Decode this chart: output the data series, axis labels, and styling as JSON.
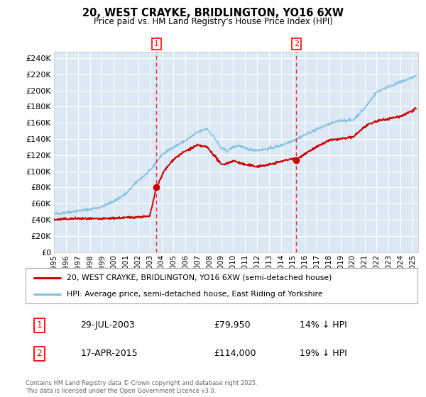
{
  "title1": "20, WEST CRAYKE, BRIDLINGTON, YO16 6XW",
  "title2": "Price paid vs. HM Land Registry's House Price Index (HPI)",
  "ylabel_ticks": [
    "£0",
    "£20K",
    "£40K",
    "£60K",
    "£80K",
    "£100K",
    "£120K",
    "£140K",
    "£160K",
    "£180K",
    "£200K",
    "£220K",
    "£240K"
  ],
  "ytick_vals": [
    0,
    20000,
    40000,
    60000,
    80000,
    100000,
    120000,
    140000,
    160000,
    180000,
    200000,
    220000,
    240000
  ],
  "ylim": [
    0,
    248000
  ],
  "xlim_start": 1995.0,
  "xlim_end": 2025.5,
  "hpi_color": "#7fbfdf",
  "price_color": "#cc0000",
  "marker1_date": 2003.57,
  "marker1_price": 79950,
  "marker2_date": 2015.29,
  "marker2_price": 114000,
  "legend_label1": "20, WEST CRAYKE, BRIDLINGTON, YO16 6XW (semi-detached house)",
  "legend_label2": "HPI: Average price, semi-detached house, East Riding of Yorkshire",
  "annot1_date": "29-JUL-2003",
  "annot1_price": "£79,950",
  "annot1_pct": "14% ↓ HPI",
  "annot2_date": "17-APR-2015",
  "annot2_price": "£114,000",
  "annot2_pct": "19% ↓ HPI",
  "copyright_text": "Contains HM Land Registry data © Crown copyright and database right 2025.\nThis data is licensed under the Open Government Licence v3.0.",
  "plot_bg_color": "#dce9f5",
  "grid_color": "#ffffff",
  "xtick_years": [
    1995,
    1996,
    1997,
    1998,
    1999,
    2000,
    2001,
    2002,
    2003,
    2004,
    2005,
    2006,
    2007,
    2008,
    2009,
    2010,
    2011,
    2012,
    2013,
    2014,
    2015,
    2016,
    2017,
    2018,
    2019,
    2020,
    2021,
    2022,
    2023,
    2024,
    2025
  ],
  "hpi_anchors": [
    [
      1995.0,
      47000
    ],
    [
      1996.0,
      49000
    ],
    [
      1997.0,
      51000
    ],
    [
      1998.0,
      53000
    ],
    [
      1999.0,
      56000
    ],
    [
      2000.0,
      63000
    ],
    [
      2001.0,
      72000
    ],
    [
      2002.0,
      88000
    ],
    [
      2003.0,
      100000
    ],
    [
      2004.0,
      120000
    ],
    [
      2005.0,
      130000
    ],
    [
      2006.0,
      138000
    ],
    [
      2007.0,
      148000
    ],
    [
      2007.8,
      153000
    ],
    [
      2008.5,
      140000
    ],
    [
      2009.0,
      128000
    ],
    [
      2009.5,
      125000
    ],
    [
      2010.0,
      130000
    ],
    [
      2010.5,
      132000
    ],
    [
      2011.0,
      128000
    ],
    [
      2012.0,
      126000
    ],
    [
      2013.0,
      128000
    ],
    [
      2014.0,
      132000
    ],
    [
      2015.0,
      138000
    ],
    [
      2016.0,
      145000
    ],
    [
      2017.0,
      152000
    ],
    [
      2018.0,
      158000
    ],
    [
      2019.0,
      163000
    ],
    [
      2020.0,
      163000
    ],
    [
      2021.0,
      178000
    ],
    [
      2022.0,
      198000
    ],
    [
      2023.0,
      205000
    ],
    [
      2024.0,
      210000
    ],
    [
      2025.3,
      218000
    ]
  ],
  "price_anchors": [
    [
      1995.0,
      40000
    ],
    [
      1996.0,
      41000
    ],
    [
      1997.0,
      41500
    ],
    [
      1998.0,
      41000
    ],
    [
      1999.0,
      41000
    ],
    [
      2000.0,
      42000
    ],
    [
      2001.0,
      42500
    ],
    [
      2002.0,
      43500
    ],
    [
      2003.0,
      44000
    ],
    [
      2003.57,
      79950
    ],
    [
      2004.2,
      100000
    ],
    [
      2005.0,
      115000
    ],
    [
      2006.0,
      125000
    ],
    [
      2007.0,
      132000
    ],
    [
      2007.8,
      130000
    ],
    [
      2008.5,
      118000
    ],
    [
      2009.0,
      108000
    ],
    [
      2009.5,
      110000
    ],
    [
      2010.0,
      113000
    ],
    [
      2011.0,
      108000
    ],
    [
      2012.0,
      106000
    ],
    [
      2013.0,
      108000
    ],
    [
      2014.0,
      112000
    ],
    [
      2015.0,
      116000
    ],
    [
      2015.29,
      114000
    ],
    [
      2016.0,
      122000
    ],
    [
      2017.0,
      130000
    ],
    [
      2018.0,
      138000
    ],
    [
      2019.0,
      140000
    ],
    [
      2020.0,
      142000
    ],
    [
      2021.0,
      155000
    ],
    [
      2022.0,
      162000
    ],
    [
      2023.0,
      165000
    ],
    [
      2024.0,
      168000
    ],
    [
      2025.0,
      175000
    ],
    [
      2025.3,
      178000
    ]
  ]
}
